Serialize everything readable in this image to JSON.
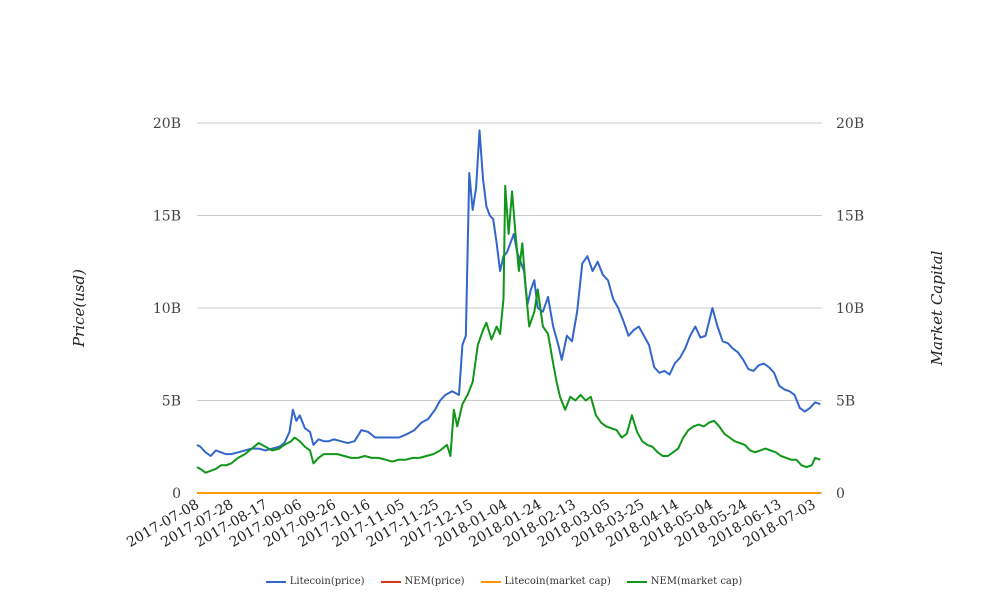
{
  "chart_data": {
    "type": "line",
    "title": "",
    "ylabel_left": "Price(usd)",
    "ylabel_right": "Market Capital",
    "ylim": [
      0,
      20000000000
    ],
    "ytick_values": [
      0,
      5000000000,
      10000000000,
      15000000000,
      20000000000
    ],
    "ytick_labels": [
      "0",
      "5B",
      "10B",
      "15B",
      "20B"
    ],
    "y2tick_labels": [
      "0",
      "5B",
      "10B",
      "15B",
      "20B"
    ],
    "xlim": [
      "2017-07-08",
      "2018-07-08"
    ],
    "xtick_labels": [
      "2017-07-08",
      "2017-07-28",
      "2017-08-17",
      "2017-09-06",
      "2017-09-26",
      "2017-10-16",
      "2017-11-05",
      "2017-11-25",
      "2017-12-15",
      "2018-01-04",
      "2018-01-24",
      "2018-02-13",
      "2018-03-05",
      "2018-03-25",
      "2018-04-14",
      "2018-05-04",
      "2018-05-24",
      "2018-06-13",
      "2018-07-03"
    ],
    "grid": "horizontal",
    "legend_position": "bottom",
    "series": [
      {
        "name": "Litecoin(price)",
        "color": "#3366cc",
        "points": [
          [
            "2017-07-08",
            2.6
          ],
          [
            "2017-07-10",
            2.5
          ],
          [
            "2017-07-13",
            2.2
          ],
          [
            "2017-07-16",
            2.0
          ],
          [
            "2017-07-19",
            2.3
          ],
          [
            "2017-07-22",
            2.2
          ],
          [
            "2017-07-25",
            2.1
          ],
          [
            "2017-07-28",
            2.1
          ],
          [
            "2017-08-01",
            2.2
          ],
          [
            "2017-08-05",
            2.3
          ],
          [
            "2017-08-09",
            2.4
          ],
          [
            "2017-08-13",
            2.4
          ],
          [
            "2017-08-17",
            2.3
          ],
          [
            "2017-08-21",
            2.4
          ],
          [
            "2017-08-25",
            2.5
          ],
          [
            "2017-08-28",
            2.7
          ],
          [
            "2017-08-31",
            3.3
          ],
          [
            "2017-09-02",
            4.5
          ],
          [
            "2017-09-04",
            3.9
          ],
          [
            "2017-09-06",
            4.2
          ],
          [
            "2017-09-09",
            3.5
          ],
          [
            "2017-09-12",
            3.3
          ],
          [
            "2017-09-14",
            2.6
          ],
          [
            "2017-09-17",
            2.9
          ],
          [
            "2017-09-20",
            2.8
          ],
          [
            "2017-09-23",
            2.8
          ],
          [
            "2017-09-26",
            2.9
          ],
          [
            "2017-09-30",
            2.8
          ],
          [
            "2017-10-04",
            2.7
          ],
          [
            "2017-10-08",
            2.8
          ],
          [
            "2017-10-12",
            3.4
          ],
          [
            "2017-10-16",
            3.3
          ],
          [
            "2017-10-20",
            3.0
          ],
          [
            "2017-10-25",
            3.0
          ],
          [
            "2017-10-30",
            3.0
          ],
          [
            "2017-11-03",
            3.0
          ],
          [
            "2017-11-08",
            3.2
          ],
          [
            "2017-11-12",
            3.4
          ],
          [
            "2017-11-16",
            3.8
          ],
          [
            "2017-11-20",
            4.0
          ],
          [
            "2017-11-24",
            4.5
          ],
          [
            "2017-11-27",
            5.0
          ],
          [
            "2017-11-30",
            5.3
          ],
          [
            "2017-12-04",
            5.5
          ],
          [
            "2017-12-08",
            5.3
          ],
          [
            "2017-12-10",
            8.0
          ],
          [
            "2017-12-12",
            8.5
          ],
          [
            "2017-12-14",
            17.3
          ],
          [
            "2017-12-16",
            15.3
          ],
          [
            "2017-12-18",
            16.5
          ],
          [
            "2017-12-20",
            19.6
          ],
          [
            "2017-12-22",
            17.0
          ],
          [
            "2017-12-24",
            15.5
          ],
          [
            "2017-12-26",
            15.0
          ],
          [
            "2017-12-28",
            14.8
          ],
          [
            "2017-12-30",
            13.5
          ],
          [
            "2018-01-01",
            12.0
          ],
          [
            "2018-01-03",
            12.8
          ],
          [
            "2018-01-05",
            13.0
          ],
          [
            "2018-01-07",
            13.5
          ],
          [
            "2018-01-09",
            14.0
          ],
          [
            "2018-01-11",
            13.0
          ],
          [
            "2018-01-13",
            12.5
          ],
          [
            "2018-01-15",
            12.0
          ],
          [
            "2018-01-17",
            10.2
          ],
          [
            "2018-01-19",
            11.0
          ],
          [
            "2018-01-21",
            11.5
          ],
          [
            "2018-01-23",
            10.0
          ],
          [
            "2018-01-26",
            9.8
          ],
          [
            "2018-01-29",
            10.6
          ],
          [
            "2018-02-01",
            9.0
          ],
          [
            "2018-02-04",
            8.0
          ],
          [
            "2018-02-06",
            7.2
          ],
          [
            "2018-02-09",
            8.5
          ],
          [
            "2018-02-12",
            8.2
          ],
          [
            "2018-02-15",
            9.8
          ],
          [
            "2018-02-18",
            12.4
          ],
          [
            "2018-02-21",
            12.8
          ],
          [
            "2018-02-24",
            12.0
          ],
          [
            "2018-02-27",
            12.5
          ],
          [
            "2018-03-02",
            11.8
          ],
          [
            "2018-03-05",
            11.5
          ],
          [
            "2018-03-08",
            10.5
          ],
          [
            "2018-03-11",
            10.0
          ],
          [
            "2018-03-14",
            9.3
          ],
          [
            "2018-03-17",
            8.5
          ],
          [
            "2018-03-20",
            8.8
          ],
          [
            "2018-03-23",
            9.0
          ],
          [
            "2018-03-26",
            8.5
          ],
          [
            "2018-03-29",
            8.0
          ],
          [
            "2018-04-01",
            6.8
          ],
          [
            "2018-04-04",
            6.5
          ],
          [
            "2018-04-07",
            6.6
          ],
          [
            "2018-04-10",
            6.4
          ],
          [
            "2018-04-13",
            7.0
          ],
          [
            "2018-04-16",
            7.3
          ],
          [
            "2018-04-19",
            7.8
          ],
          [
            "2018-04-22",
            8.5
          ],
          [
            "2018-04-25",
            9.0
          ],
          [
            "2018-04-28",
            8.4
          ],
          [
            "2018-05-01",
            8.5
          ],
          [
            "2018-05-05",
            10.0
          ],
          [
            "2018-05-08",
            9.0
          ],
          [
            "2018-05-11",
            8.2
          ],
          [
            "2018-05-14",
            8.1
          ],
          [
            "2018-05-17",
            7.8
          ],
          [
            "2018-05-20",
            7.6
          ],
          [
            "2018-05-23",
            7.2
          ],
          [
            "2018-05-26",
            6.7
          ],
          [
            "2018-05-29",
            6.6
          ],
          [
            "2018-06-01",
            6.9
          ],
          [
            "2018-06-04",
            7.0
          ],
          [
            "2018-06-07",
            6.8
          ],
          [
            "2018-06-10",
            6.5
          ],
          [
            "2018-06-13",
            5.8
          ],
          [
            "2018-06-16",
            5.6
          ],
          [
            "2018-06-19",
            5.5
          ],
          [
            "2018-06-22",
            5.3
          ],
          [
            "2018-06-25",
            4.6
          ],
          [
            "2018-06-28",
            4.4
          ],
          [
            "2018-07-01",
            4.6
          ],
          [
            "2018-07-04",
            4.9
          ],
          [
            "2018-07-07",
            4.8
          ]
        ]
      },
      {
        "name": "NEM(price)",
        "color": "#dc3912",
        "points": [
          [
            "2017-07-08",
            0
          ],
          [
            "2018-07-07",
            0
          ]
        ]
      },
      {
        "name": "Litecoin(market cap)",
        "color": "#ff9900",
        "points": [
          [
            "2017-07-08",
            0
          ],
          [
            "2018-07-07",
            0
          ]
        ]
      },
      {
        "name": "NEM(market cap)",
        "color": "#109618",
        "points": [
          [
            "2017-07-08",
            1.4
          ],
          [
            "2017-07-10",
            1.3
          ],
          [
            "2017-07-13",
            1.1
          ],
          [
            "2017-07-16",
            1.2
          ],
          [
            "2017-07-19",
            1.3
          ],
          [
            "2017-07-22",
            1.5
          ],
          [
            "2017-07-25",
            1.5
          ],
          [
            "2017-07-28",
            1.6
          ],
          [
            "2017-08-01",
            1.9
          ],
          [
            "2017-08-05",
            2.1
          ],
          [
            "2017-08-09",
            2.4
          ],
          [
            "2017-08-13",
            2.7
          ],
          [
            "2017-08-17",
            2.5
          ],
          [
            "2017-08-21",
            2.3
          ],
          [
            "2017-08-25",
            2.4
          ],
          [
            "2017-08-28",
            2.6
          ],
          [
            "2017-09-01",
            2.8
          ],
          [
            "2017-09-03",
            3.0
          ],
          [
            "2017-09-06",
            2.8
          ],
          [
            "2017-09-09",
            2.5
          ],
          [
            "2017-09-12",
            2.3
          ],
          [
            "2017-09-14",
            1.6
          ],
          [
            "2017-09-17",
            1.9
          ],
          [
            "2017-09-20",
            2.1
          ],
          [
            "2017-09-24",
            2.1
          ],
          [
            "2017-09-28",
            2.1
          ],
          [
            "2017-10-02",
            2.0
          ],
          [
            "2017-10-06",
            1.9
          ],
          [
            "2017-10-10",
            1.9
          ],
          [
            "2017-10-14",
            2.0
          ],
          [
            "2017-10-18",
            1.9
          ],
          [
            "2017-10-22",
            1.9
          ],
          [
            "2017-10-26",
            1.8
          ],
          [
            "2017-10-30",
            1.7
          ],
          [
            "2017-11-03",
            1.8
          ],
          [
            "2017-11-07",
            1.8
          ],
          [
            "2017-11-11",
            1.9
          ],
          [
            "2017-11-15",
            1.9
          ],
          [
            "2017-11-19",
            2.0
          ],
          [
            "2017-11-23",
            2.1
          ],
          [
            "2017-11-27",
            2.3
          ],
          [
            "2017-12-01",
            2.6
          ],
          [
            "2017-12-03",
            2.0
          ],
          [
            "2017-12-05",
            4.5
          ],
          [
            "2017-12-07",
            3.6
          ],
          [
            "2017-12-10",
            4.8
          ],
          [
            "2017-12-13",
            5.3
          ],
          [
            "2017-12-16",
            6.0
          ],
          [
            "2017-12-19",
            8.0
          ],
          [
            "2017-12-22",
            8.8
          ],
          [
            "2017-12-24",
            9.2
          ],
          [
            "2017-12-27",
            8.3
          ],
          [
            "2017-12-30",
            9.0
          ],
          [
            "2018-01-01",
            8.6
          ],
          [
            "2018-01-03",
            10.5
          ],
          [
            "2018-01-04",
            16.6
          ],
          [
            "2018-01-06",
            14.0
          ],
          [
            "2018-01-08",
            16.3
          ],
          [
            "2018-01-10",
            14.0
          ],
          [
            "2018-01-12",
            12.0
          ],
          [
            "2018-01-14",
            13.5
          ],
          [
            "2018-01-16",
            11.0
          ],
          [
            "2018-01-18",
            9.0
          ],
          [
            "2018-01-21",
            9.8
          ],
          [
            "2018-01-23",
            11.0
          ],
          [
            "2018-01-26",
            9.0
          ],
          [
            "2018-01-29",
            8.6
          ],
          [
            "2018-02-01",
            7.0
          ],
          [
            "2018-02-03",
            6.0
          ],
          [
            "2018-02-05",
            5.2
          ],
          [
            "2018-02-08",
            4.5
          ],
          [
            "2018-02-11",
            5.2
          ],
          [
            "2018-02-14",
            5.0
          ],
          [
            "2018-02-17",
            5.3
          ],
          [
            "2018-02-20",
            5.0
          ],
          [
            "2018-02-23",
            5.2
          ],
          [
            "2018-02-26",
            4.2
          ],
          [
            "2018-03-01",
            3.8
          ],
          [
            "2018-03-04",
            3.6
          ],
          [
            "2018-03-07",
            3.5
          ],
          [
            "2018-03-10",
            3.4
          ],
          [
            "2018-03-13",
            3.0
          ],
          [
            "2018-03-16",
            3.2
          ],
          [
            "2018-03-19",
            4.2
          ],
          [
            "2018-03-22",
            3.3
          ],
          [
            "2018-03-25",
            2.8
          ],
          [
            "2018-03-28",
            2.6
          ],
          [
            "2018-03-31",
            2.5
          ],
          [
            "2018-04-03",
            2.2
          ],
          [
            "2018-04-06",
            2.0
          ],
          [
            "2018-04-09",
            2.0
          ],
          [
            "2018-04-12",
            2.2
          ],
          [
            "2018-04-15",
            2.4
          ],
          [
            "2018-04-18",
            3.0
          ],
          [
            "2018-04-21",
            3.4
          ],
          [
            "2018-04-24",
            3.6
          ],
          [
            "2018-04-27",
            3.7
          ],
          [
            "2018-04-30",
            3.6
          ],
          [
            "2018-05-03",
            3.8
          ],
          [
            "2018-05-06",
            3.9
          ],
          [
            "2018-05-09",
            3.6
          ],
          [
            "2018-05-12",
            3.2
          ],
          [
            "2018-05-15",
            3.0
          ],
          [
            "2018-05-18",
            2.8
          ],
          [
            "2018-05-21",
            2.7
          ],
          [
            "2018-05-24",
            2.6
          ],
          [
            "2018-05-27",
            2.3
          ],
          [
            "2018-05-30",
            2.2
          ],
          [
            "2018-06-02",
            2.3
          ],
          [
            "2018-06-05",
            2.4
          ],
          [
            "2018-06-08",
            2.3
          ],
          [
            "2018-06-11",
            2.2
          ],
          [
            "2018-06-14",
            2.0
          ],
          [
            "2018-06-17",
            1.9
          ],
          [
            "2018-06-20",
            1.8
          ],
          [
            "2018-06-23",
            1.8
          ],
          [
            "2018-06-26",
            1.5
          ],
          [
            "2018-06-29",
            1.4
          ],
          [
            "2018-07-02",
            1.5
          ],
          [
            "2018-07-04",
            1.9
          ],
          [
            "2018-07-07",
            1.8
          ]
        ]
      }
    ],
    "point_value_unit": "B"
  }
}
